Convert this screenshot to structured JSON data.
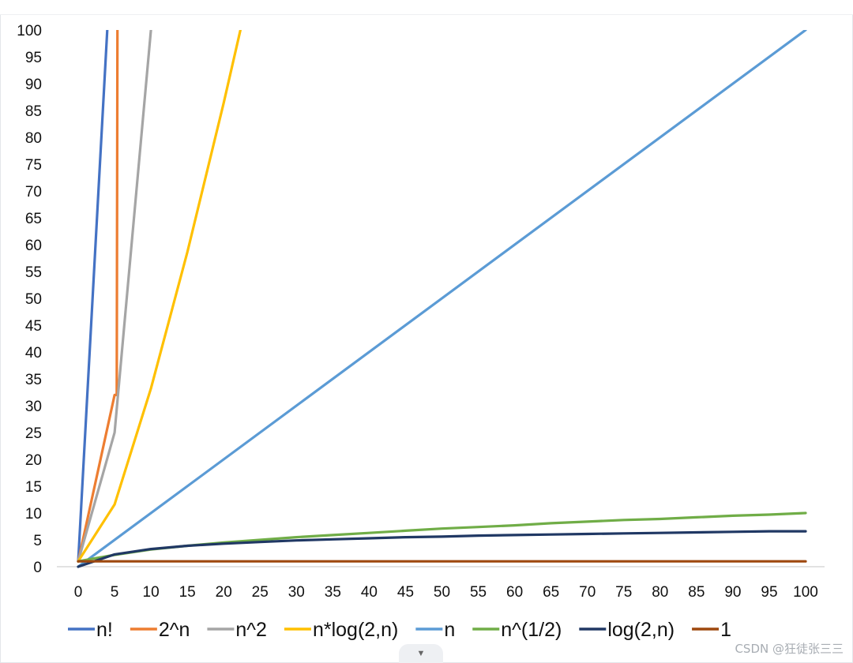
{
  "chart_data": {
    "type": "line",
    "title": "",
    "xlabel": "",
    "ylabel": "",
    "x_ticks": [
      0,
      5,
      10,
      15,
      20,
      25,
      30,
      35,
      40,
      45,
      50,
      55,
      60,
      65,
      70,
      75,
      80,
      85,
      90,
      95,
      100
    ],
    "y_ticks": [
      0,
      5,
      10,
      15,
      20,
      25,
      30,
      35,
      40,
      45,
      50,
      55,
      60,
      65,
      70,
      75,
      80,
      85,
      90,
      95,
      100
    ],
    "xlim": [
      0,
      100
    ],
    "ylim": [
      0,
      100
    ],
    "grid": false,
    "legend_position": "bottom",
    "series": [
      {
        "name": "n!",
        "color": "#4472C4",
        "x": [
          0,
          4
        ],
        "y": [
          1,
          100
        ]
      },
      {
        "name": "2^n",
        "color": "#ED7D31",
        "x": [
          0,
          5,
          5.3,
          5.4
        ],
        "y": [
          1,
          32,
          32,
          100
        ]
      },
      {
        "name": "n^2",
        "color": "#A5A5A5",
        "x": [
          0,
          5,
          10
        ],
        "y": [
          1,
          25,
          100
        ]
      },
      {
        "name": "n*log(2,n)",
        "color": "#FFC000",
        "x": [
          0,
          5,
          10,
          15,
          20,
          22.3
        ],
        "y": [
          1,
          11.6,
          33.2,
          58.6,
          86.4,
          100
        ]
      },
      {
        "name": "n",
        "color": "#5B9BD5",
        "x": [
          0,
          100
        ],
        "y": [
          0,
          100
        ]
      },
      {
        "name": "n^(1/2)",
        "color": "#70AD47",
        "x": [
          0,
          5,
          10,
          15,
          20,
          25,
          30,
          35,
          40,
          45,
          50,
          55,
          60,
          65,
          70,
          75,
          80,
          85,
          90,
          95,
          100
        ],
        "y": [
          1,
          2.2,
          3.2,
          3.9,
          4.5,
          5,
          5.5,
          5.9,
          6.3,
          6.7,
          7.1,
          7.4,
          7.7,
          8.1,
          8.4,
          8.7,
          8.9,
          9.2,
          9.5,
          9.7,
          10
        ]
      },
      {
        "name": "log(2,n)",
        "color": "#203864",
        "x": [
          0,
          5,
          10,
          15,
          20,
          25,
          30,
          35,
          40,
          45,
          50,
          55,
          60,
          65,
          70,
          75,
          80,
          85,
          90,
          95,
          100
        ],
        "y": [
          0,
          2.3,
          3.3,
          3.9,
          4.3,
          4.6,
          4.9,
          5.1,
          5.3,
          5.5,
          5.6,
          5.8,
          5.9,
          6,
          6.1,
          6.2,
          6.3,
          6.4,
          6.5,
          6.6,
          6.6
        ]
      },
      {
        "name": "1",
        "color": "#9E480E",
        "x": [
          0,
          100
        ],
        "y": [
          1,
          1
        ]
      }
    ]
  },
  "watermark": "CSDN @狂徒张三三"
}
